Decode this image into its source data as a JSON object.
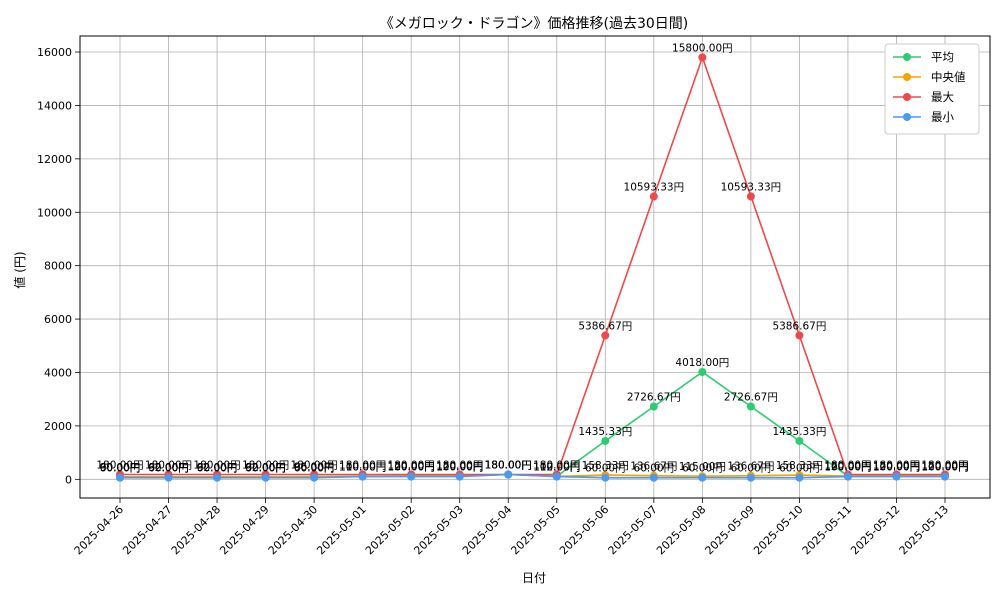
{
  "chart_data": {
    "type": "line",
    "title": "《メガロック・ドラゴン》価格推移(過去30日間)",
    "xlabel": "日付",
    "ylabel": "値 (円)",
    "ylim": [
      -700,
      16600
    ],
    "yticks": [
      0,
      2000,
      4000,
      6000,
      8000,
      10000,
      12000,
      14000,
      16000
    ],
    "grid": true,
    "legend_position": "top-right",
    "unit_suffix": "円",
    "categories": [
      "2025-04-26",
      "2025-04-27",
      "2025-04-28",
      "2025-04-29",
      "2025-04-30",
      "2025-05-01",
      "2025-05-02",
      "2025-05-03",
      "2025-05-04",
      "2025-05-05",
      "2025-05-06",
      "2025-05-07",
      "2025-05-08",
      "2025-05-09",
      "2025-05-10",
      "2025-05-11",
      "2025-05-12",
      "2025-05-13"
    ],
    "series": [
      {
        "name": "平均",
        "color": "#2ecc71",
        "values": [
          90.0,
          92.0,
          92.0,
          92.0,
          96.0,
          110.0,
          120.0,
          120.0,
          180.0,
          112.0,
          1435.33,
          2726.67,
          4018.0,
          2726.67,
          1435.33,
          120.0,
          120.0,
          120.0
        ]
      },
      {
        "name": "中央値",
        "color": "#f5a300",
        "values": [
          90.0,
          92.0,
          92.0,
          92.0,
          96.0,
          110.0,
          120.0,
          120.0,
          180.0,
          110.0,
          158.33,
          136.67,
          115.0,
          136.67,
          158.33,
          120.0,
          120.0,
          120.0
        ]
      },
      {
        "name": "最大",
        "color": "#f04848",
        "values": [
          180.0,
          180.0,
          180.0,
          180.0,
          180.0,
          180.0,
          180.0,
          180.0,
          180.0,
          180.0,
          5386.67,
          10593.33,
          15800.0,
          10593.33,
          5386.67,
          180.0,
          180.0,
          180.0
        ]
      },
      {
        "name": "最小",
        "color": "#4a9af0",
        "values": [
          60.0,
          60.0,
          60.0,
          60.0,
          60.0,
          100.0,
          100.0,
          100.0,
          180.0,
          100.0,
          60.0,
          60.0,
          60.0,
          60.0,
          60.0,
          100.0,
          100.0,
          100.0
        ]
      }
    ]
  }
}
